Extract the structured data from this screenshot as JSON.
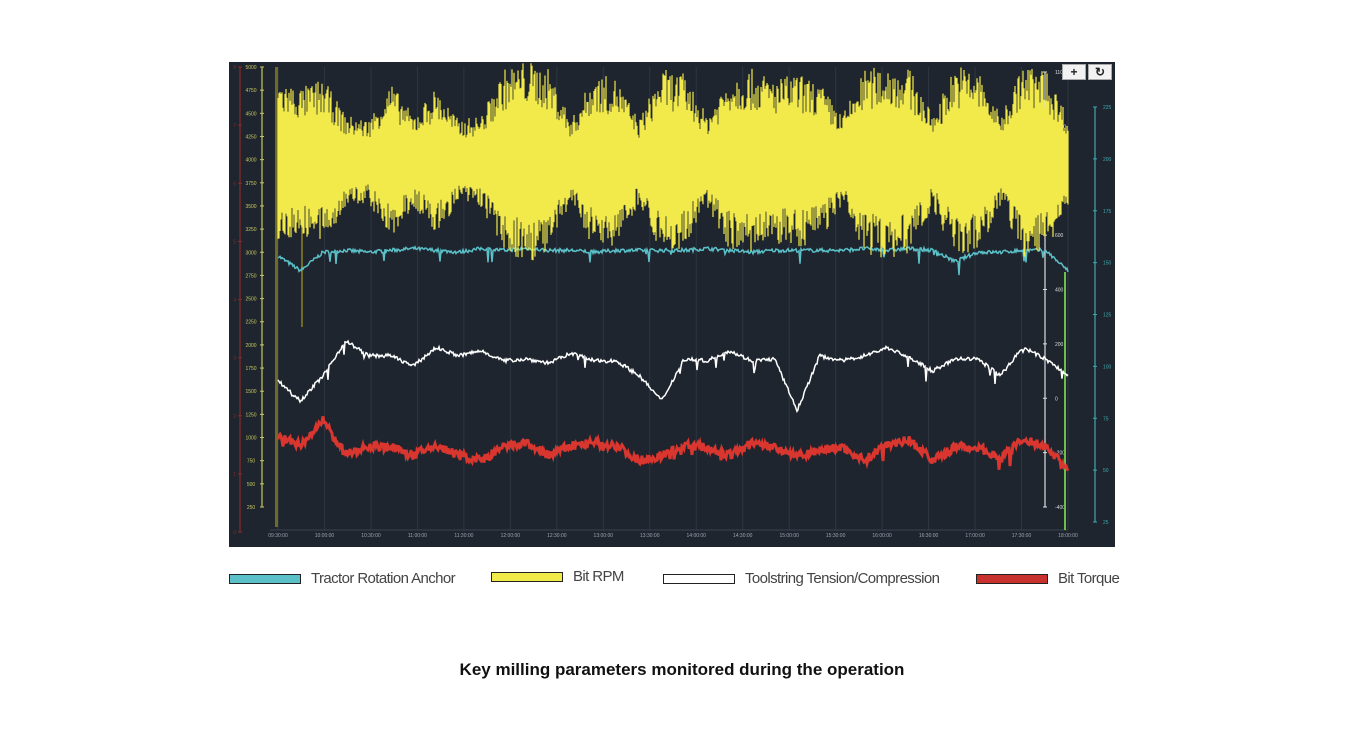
{
  "chart_data": {
    "type": "line",
    "caption": "Key milling parameters monitored during the operation",
    "controls": {
      "zoom_label": "+",
      "reset_label": "↻"
    },
    "x_ticks": [
      "09:30:00",
      "10:00:00",
      "10:30:00",
      "11:00:00",
      "11:30:00",
      "12:00:00",
      "12:30:00",
      "13:00:00",
      "13:30:00",
      "14:00:00",
      "14:30:00",
      "15:00:00",
      "15:30:00",
      "16:00:00",
      "16:30:00",
      "17:00:00",
      "17:30:00",
      "18:00:00"
    ],
    "axes": {
      "torque": {
        "min": 0,
        "max": 8,
        "ticks": [
          "8",
          "7",
          "6",
          "5",
          "4",
          "3",
          "2",
          "1",
          "0"
        ],
        "color": "#8a2a2a"
      },
      "rpm": {
        "min": 0,
        "max": 5000,
        "ticks": [
          "5000",
          "4750",
          "4500",
          "4250",
          "4000",
          "3750",
          "3500",
          "3250",
          "3000",
          "2750",
          "2500",
          "2250",
          "2000",
          "1750",
          "1500",
          "1250",
          "1000",
          "750",
          "500",
          "250"
        ],
        "color": "#c8c860"
      },
      "tension": {
        "min": -500,
        "max": 1200,
        "ticks": [
          "1100",
          "1000",
          "800",
          "600",
          "400",
          "200",
          "0",
          "-200",
          "-400"
        ],
        "color": "#dddddd"
      },
      "tractor": {
        "min": 0,
        "max": 250,
        "ticks": [
          "225",
          "200",
          "175",
          "150",
          "125",
          "100",
          "75",
          "50",
          "25"
        ],
        "color": "#3fa8b0"
      }
    },
    "series": [
      {
        "name": "Tractor Rotation Anchor",
        "axis": "tractor",
        "color": "#5bc0c8",
        "values": [
          148,
          140,
          150,
          151,
          150,
          151,
          152,
          151,
          150,
          152,
          151,
          152,
          151,
          151,
          150,
          151,
          151,
          151,
          151,
          152,
          151,
          150,
          151,
          151,
          151,
          151,
          152,
          151,
          152,
          151,
          145,
          150,
          150,
          151,
          151,
          140
        ]
      },
      {
        "name": "Bit RPM",
        "axis": "rpm",
        "color": "#f2e94a",
        "values": [
          3980,
          3980,
          3980,
          3980,
          3980,
          3980,
          3980,
          3980,
          3980,
          3980,
          3980,
          3980,
          3980,
          3980,
          3980,
          3980,
          3980,
          3980,
          3980,
          3980,
          3980,
          3980,
          3980,
          3980,
          3980,
          3980,
          3980,
          3980,
          3980,
          3980,
          3980,
          3980,
          3980,
          3980,
          3980,
          3980
        ],
        "spread": [
          900,
          800,
          900,
          500,
          450,
          850,
          500,
          800,
          450,
          500,
          1000,
          1100,
          1000,
          450,
          950,
          900,
          450,
          1000,
          950,
          500,
          950,
          1000,
          900,
          950,
          850,
          500,
          1000,
          1050,
          1000,
          500,
          1050,
          1000,
          500,
          1050,
          1000,
          500
        ]
      },
      {
        "name": "Toolstring Tension/Compression",
        "axis": "tension",
        "color": "#ffffff",
        "values": [
          48,
          -25,
          67,
          195,
          140,
          140,
          102,
          170,
          140,
          158,
          121,
          128,
          113,
          150,
          121,
          121,
          67,
          -25,
          128,
          121,
          158,
          121,
          128,
          -61,
          140,
          121,
          140,
          170,
          132,
          84,
          128,
          128,
          67,
          170,
          128,
          67
        ]
      },
      {
        "name": "Bit Torque",
        "axis": "torque",
        "color": "#d8362e",
        "values": [
          1.63,
          1.46,
          1.89,
          1.29,
          1.46,
          1.43,
          1.29,
          1.46,
          1.29,
          1.2,
          1.43,
          1.5,
          1.29,
          1.46,
          1.5,
          1.46,
          1.2,
          1.29,
          1.46,
          1.43,
          1.29,
          1.5,
          1.43,
          1.29,
          1.38,
          1.43,
          1.2,
          1.5,
          1.55,
          1.2,
          1.43,
          1.43,
          1.25,
          1.55,
          1.46,
          1.03
        ]
      }
    ]
  }
}
